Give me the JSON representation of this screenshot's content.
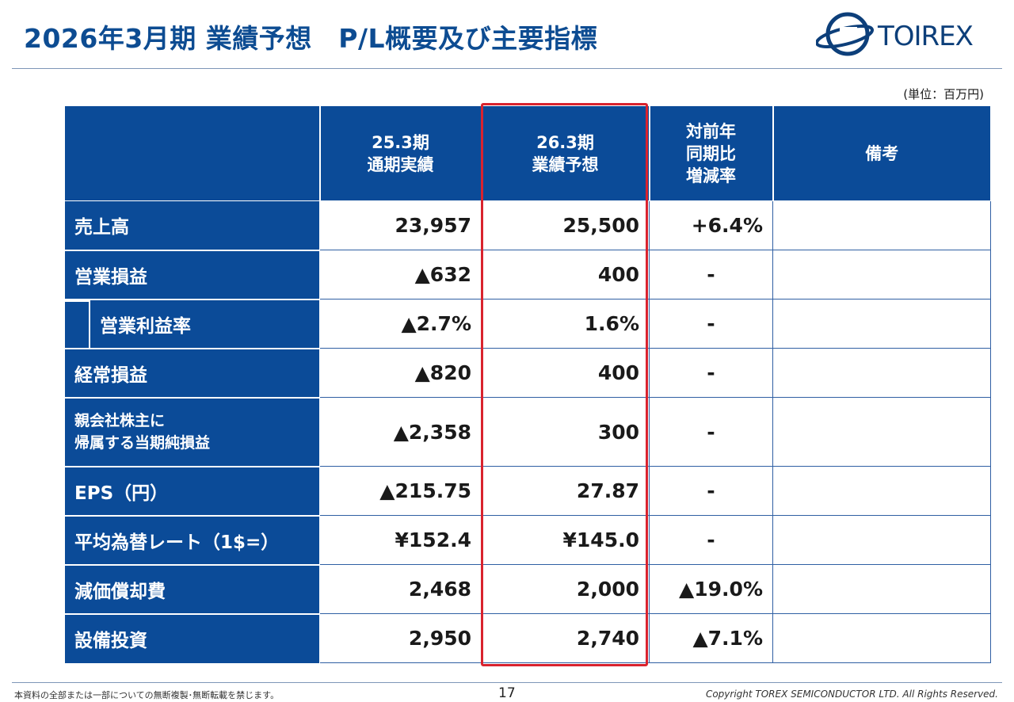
{
  "title": "2026年3月期 業績予想　P/L概要及び主要指標",
  "logo": {
    "text": "TOIREX",
    "icon": "torex-orbit-logo-icon"
  },
  "unit": "(単位：百万円)",
  "table": {
    "headers": {
      "blank": "",
      "col_prev": [
        "25.3期",
        "通期実績"
      ],
      "col_fcst": [
        "26.3期",
        "業績予想"
      ],
      "col_yoy": [
        "対前年",
        "同期比",
        "増減率"
      ],
      "col_note": "備考"
    },
    "rows": [
      {
        "label": [
          "売上高"
        ],
        "prev": "23,957",
        "fcst": "25,500",
        "yoy": "+6.4%",
        "note": ""
      },
      {
        "label": [
          "営業損益"
        ],
        "prev": "▲632",
        "fcst": "400",
        "yoy": "-",
        "note": ""
      },
      {
        "label": [
          "営業利益率"
        ],
        "prev": "▲2.7%",
        "fcst": "1.6%",
        "yoy": "-",
        "note": "",
        "indent": true
      },
      {
        "label": [
          "経常損益"
        ],
        "prev": "▲820",
        "fcst": "400",
        "yoy": "-",
        "note": ""
      },
      {
        "label": [
          "親会社株主に",
          "帰属する当期純損益"
        ],
        "prev": "▲2,358",
        "fcst": "300",
        "yoy": "-",
        "note": "",
        "small": true
      },
      {
        "label": [
          "EPS（円）"
        ],
        "prev": "▲215.75",
        "fcst": "27.87",
        "yoy": "-",
        "note": ""
      },
      {
        "label": [
          "平均為替レート（1$=）"
        ],
        "prev": "¥152.4",
        "fcst": "¥145.0",
        "yoy": "-",
        "note": ""
      },
      {
        "label": [
          "減価償却費"
        ],
        "prev": "2,468",
        "fcst": "2,000",
        "yoy": "▲19.0%",
        "note": ""
      },
      {
        "label": [
          "設備投資"
        ],
        "prev": "2,950",
        "fcst": "2,740",
        "yoy": "▲7.1%",
        "note": ""
      }
    ]
  },
  "colors": {
    "header_blue": "#0b4b98",
    "title_blue": "#0d4c92",
    "highlight_red": "#d9232e"
  },
  "footer": {
    "disclaimer": "本資料の全部または一部についての無断複製･無断転載を禁じます。",
    "page": "17",
    "copyright": "Copyright TOREX SEMICONDUCTOR LTD.  All Rights Reserved."
  }
}
